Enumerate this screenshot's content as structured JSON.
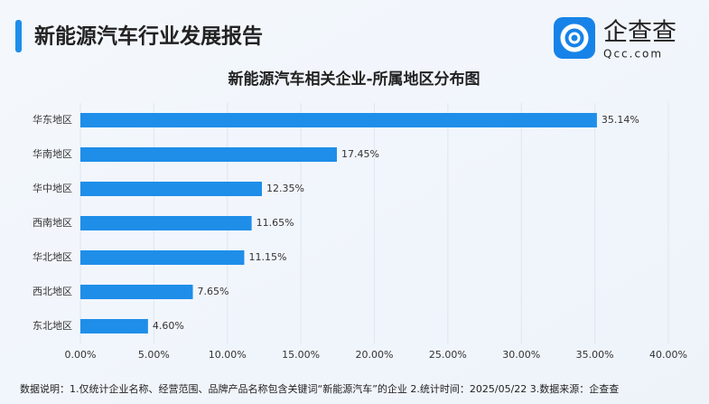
{
  "header": {
    "title": "新能源汽车行业发展报告"
  },
  "logo": {
    "name": "企查查",
    "domain": "Qcc.com"
  },
  "chart_data": {
    "type": "bar",
    "orientation": "horizontal",
    "title": "新能源汽车相关企业-所属地区分布图",
    "categories": [
      "华东地区",
      "华南地区",
      "华中地区",
      "西南地区",
      "华北地区",
      "西北地区",
      "东北地区"
    ],
    "values": [
      35.14,
      17.45,
      12.35,
      11.65,
      11.15,
      7.65,
      4.6
    ],
    "value_labels": [
      "35.14%",
      "17.45%",
      "12.35%",
      "11.65%",
      "11.15%",
      "7.65%",
      "4.60%"
    ],
    "color": "#1e8ee9",
    "xlim": [
      0,
      40
    ],
    "xticks": [
      {
        "value": 0,
        "label": "0.00%"
      },
      {
        "value": 5,
        "label": "5.00%"
      },
      {
        "value": 10,
        "label": "10.00%"
      },
      {
        "value": 15,
        "label": "15.00%"
      },
      {
        "value": 20,
        "label": "20.00%"
      },
      {
        "value": 25,
        "label": "25.00%"
      },
      {
        "value": 30,
        "label": "30.00%"
      },
      {
        "value": 35,
        "label": "35.00%"
      },
      {
        "value": 40,
        "label": "40.00%"
      }
    ],
    "grid": true
  },
  "footnote": "数据说明：1.仅统计企业名称、经营范围、品牌产品名称包含关键词“新能源汽车”的企业  2.统计时间：2025/05/22  3.数据来源：企查查"
}
